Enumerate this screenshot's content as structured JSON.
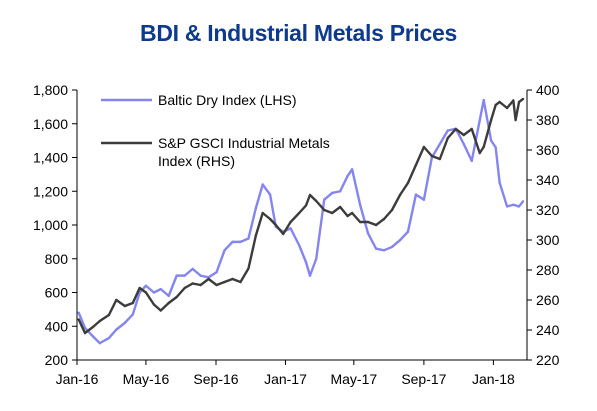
{
  "chart_data": {
    "type": "line",
    "title": "BDI & Industrial Metals Prices",
    "x_tick_labels": [
      "Jan-16",
      "May-16",
      "Sep-16",
      "Jan-17",
      "May-17",
      "Sep-17",
      "Jan-18"
    ],
    "y_left_ticks": [
      "200",
      "400",
      "600",
      "800",
      "1,000",
      "1,200",
      "1,400",
      "1,600",
      "1,800"
    ],
    "y_right_ticks": [
      "220",
      "240",
      "260",
      "280",
      "300",
      "320",
      "340",
      "360",
      "380",
      "400"
    ],
    "y_left_range": [
      200,
      1800
    ],
    "y_right_range": [
      220,
      400
    ],
    "legend_position": "top-left",
    "series": [
      {
        "name": "Baltic Dry Index (LHS)",
        "axis": "left",
        "color": "#8585f0",
        "points": [
          [
            "2016-01-04",
            480
          ],
          [
            "2016-01-15",
            390
          ],
          [
            "2016-01-29",
            340
          ],
          [
            "2016-02-10",
            300
          ],
          [
            "2016-02-26",
            330
          ],
          [
            "2016-03-10",
            380
          ],
          [
            "2016-03-25",
            420
          ],
          [
            "2016-04-08",
            470
          ],
          [
            "2016-04-20",
            600
          ],
          [
            "2016-05-01",
            640
          ],
          [
            "2016-05-15",
            600
          ],
          [
            "2016-05-27",
            620
          ],
          [
            "2016-06-10",
            580
          ],
          [
            "2016-06-24",
            700
          ],
          [
            "2016-07-08",
            700
          ],
          [
            "2016-07-22",
            740
          ],
          [
            "2016-08-05",
            700
          ],
          [
            "2016-08-19",
            690
          ],
          [
            "2016-09-02",
            720
          ],
          [
            "2016-09-16",
            850
          ],
          [
            "2016-09-30",
            900
          ],
          [
            "2016-10-14",
            900
          ],
          [
            "2016-10-28",
            920
          ],
          [
            "2016-11-10",
            1100
          ],
          [
            "2016-11-22",
            1240
          ],
          [
            "2016-12-05",
            1180
          ],
          [
            "2016-12-15",
            990
          ],
          [
            "2016-12-28",
            960
          ],
          [
            "2017-01-10",
            980
          ],
          [
            "2017-01-25",
            880
          ],
          [
            "2017-02-06",
            780
          ],
          [
            "2017-02-13",
            700
          ],
          [
            "2017-02-24",
            800
          ],
          [
            "2017-03-10",
            1150
          ],
          [
            "2017-03-24",
            1190
          ],
          [
            "2017-04-07",
            1200
          ],
          [
            "2017-04-20",
            1290
          ],
          [
            "2017-04-28",
            1330
          ],
          [
            "2017-05-12",
            1120
          ],
          [
            "2017-05-26",
            950
          ],
          [
            "2017-06-09",
            860
          ],
          [
            "2017-06-23",
            850
          ],
          [
            "2017-07-07",
            870
          ],
          [
            "2017-07-21",
            910
          ],
          [
            "2017-08-04",
            960
          ],
          [
            "2017-08-18",
            1180
          ],
          [
            "2017-09-01",
            1150
          ],
          [
            "2017-09-15",
            1400
          ],
          [
            "2017-09-29",
            1480
          ],
          [
            "2017-10-13",
            1560
          ],
          [
            "2017-10-27",
            1570
          ],
          [
            "2017-11-10",
            1480
          ],
          [
            "2017-11-24",
            1380
          ],
          [
            "2017-12-08",
            1620
          ],
          [
            "2017-12-15",
            1740
          ],
          [
            "2017-12-28",
            1500
          ],
          [
            "2018-01-05",
            1460
          ],
          [
            "2018-01-12",
            1250
          ],
          [
            "2018-01-25",
            1110
          ],
          [
            "2018-02-05",
            1120
          ],
          [
            "2018-02-15",
            1110
          ],
          [
            "2018-02-22",
            1140
          ]
        ]
      },
      {
        "name": "S&P GSCI Industrial Metals Index (RHS)",
        "axis": "right",
        "color": "#3c3c3c",
        "points": [
          [
            "2016-01-04",
            247
          ],
          [
            "2016-01-15",
            238
          ],
          [
            "2016-01-29",
            242
          ],
          [
            "2016-02-10",
            246
          ],
          [
            "2016-02-26",
            250
          ],
          [
            "2016-03-10",
            260
          ],
          [
            "2016-03-25",
            256
          ],
          [
            "2016-04-08",
            258
          ],
          [
            "2016-04-20",
            268
          ],
          [
            "2016-05-01",
            265
          ],
          [
            "2016-05-15",
            257
          ],
          [
            "2016-05-27",
            253
          ],
          [
            "2016-06-10",
            258
          ],
          [
            "2016-06-24",
            262
          ],
          [
            "2016-07-08",
            268
          ],
          [
            "2016-07-22",
            271
          ],
          [
            "2016-08-05",
            270
          ],
          [
            "2016-08-19",
            274
          ],
          [
            "2016-09-02",
            270
          ],
          [
            "2016-09-16",
            272
          ],
          [
            "2016-09-30",
            274
          ],
          [
            "2016-10-14",
            272
          ],
          [
            "2016-10-28",
            281
          ],
          [
            "2016-11-10",
            303
          ],
          [
            "2016-11-22",
            318
          ],
          [
            "2016-12-05",
            314
          ],
          [
            "2016-12-15",
            310
          ],
          [
            "2016-12-28",
            304
          ],
          [
            "2017-01-10",
            312
          ],
          [
            "2017-01-25",
            318
          ],
          [
            "2017-02-06",
            323
          ],
          [
            "2017-02-13",
            330
          ],
          [
            "2017-02-24",
            326
          ],
          [
            "2017-03-10",
            320
          ],
          [
            "2017-03-24",
            318
          ],
          [
            "2017-04-07",
            322
          ],
          [
            "2017-04-20",
            316
          ],
          [
            "2017-04-28",
            318
          ],
          [
            "2017-05-12",
            312
          ],
          [
            "2017-05-26",
            312
          ],
          [
            "2017-06-09",
            310
          ],
          [
            "2017-06-23",
            314
          ],
          [
            "2017-07-07",
            320
          ],
          [
            "2017-07-21",
            330
          ],
          [
            "2017-08-04",
            338
          ],
          [
            "2017-08-18",
            350
          ],
          [
            "2017-09-01",
            362
          ],
          [
            "2017-09-15",
            356
          ],
          [
            "2017-09-29",
            354
          ],
          [
            "2017-10-13",
            368
          ],
          [
            "2017-10-27",
            374
          ],
          [
            "2017-11-10",
            370
          ],
          [
            "2017-11-24",
            374
          ],
          [
            "2017-12-08",
            358
          ],
          [
            "2017-12-15",
            362
          ],
          [
            "2017-12-28",
            380
          ],
          [
            "2018-01-05",
            390
          ],
          [
            "2018-01-12",
            392
          ],
          [
            "2018-01-25",
            388
          ],
          [
            "2018-02-05",
            393
          ],
          [
            "2018-02-09",
            380
          ],
          [
            "2018-02-15",
            392
          ],
          [
            "2018-02-22",
            394
          ]
        ]
      }
    ]
  }
}
